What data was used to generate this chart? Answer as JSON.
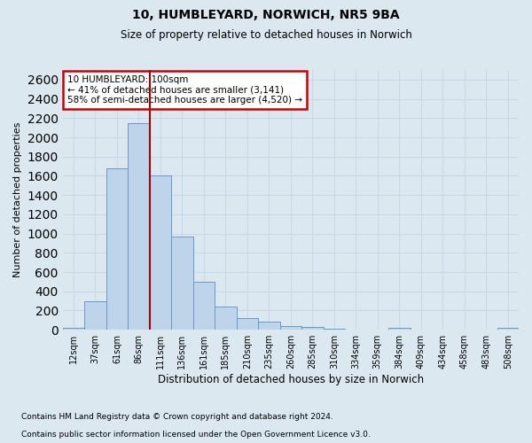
{
  "title1": "10, HUMBLEYARD, NORWICH, NR5 9BA",
  "title2": "Size of property relative to detached houses in Norwich",
  "xlabel": "Distribution of detached houses by size in Norwich",
  "ylabel": "Number of detached properties",
  "categories": [
    "12sqm",
    "37sqm",
    "61sqm",
    "86sqm",
    "111sqm",
    "136sqm",
    "161sqm",
    "185sqm",
    "210sqm",
    "235sqm",
    "260sqm",
    "285sqm",
    "310sqm",
    "334sqm",
    "359sqm",
    "384sqm",
    "409sqm",
    "434sqm",
    "458sqm",
    "483sqm",
    "508sqm"
  ],
  "values": [
    20,
    300,
    1680,
    2150,
    1600,
    970,
    500,
    245,
    120,
    85,
    40,
    25,
    10,
    2,
    0,
    20,
    0,
    0,
    0,
    0,
    20
  ],
  "bar_color": "#bdd4ea",
  "bar_edge_color": "#6699cc",
  "property_label": "10 HUMBLEYARD: 100sqm",
  "annotation_line1": "← 41% of detached houses are smaller (3,141)",
  "annotation_line2": "58% of semi-detached houses are larger (4,520) →",
  "vline_color": "#aa0000",
  "vline_index": 3.5,
  "annotation_box_color": "#ffffff",
  "annotation_box_edge": "#cc0000",
  "footer1": "Contains HM Land Registry data © Crown copyright and database right 2024.",
  "footer2": "Contains public sector information licensed under the Open Government Licence v3.0.",
  "ylim": [
    0,
    2700
  ],
  "ytick_step": 200,
  "grid_color": "#c8d8e8",
  "bg_color": "#dce8f0"
}
